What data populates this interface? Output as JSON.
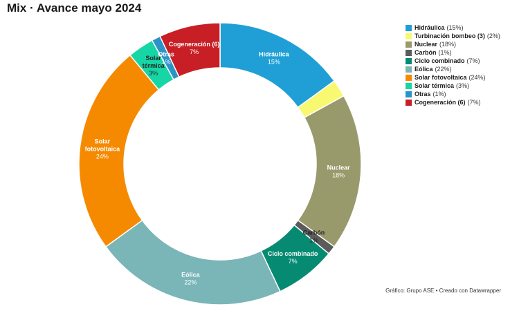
{
  "title": "Mix · Avance mayo 2024",
  "source": "Gráfico: Grupo ASE • Creado con Datawrapper",
  "chart_data": {
    "type": "pie",
    "donut": true,
    "title": "Mix · Avance mayo 2024",
    "legend_position": "top-right",
    "slices": [
      {
        "name": "Hidráulica",
        "value": 15,
        "pct_label": "(15%)",
        "slice_label": "15%",
        "color": "#1f9fd6",
        "label_on_chart": true
      },
      {
        "name": "Turbinación bombeo",
        "name_suffix": " (3)",
        "value": 2,
        "pct_label": "(2%)",
        "slice_label": "",
        "color": "#f9f871",
        "label_on_chart": false
      },
      {
        "name": "Nuclear",
        "value": 18,
        "pct_label": "(18%)",
        "slice_label": "18%",
        "color": "#999a6c",
        "label_on_chart": true
      },
      {
        "name": "Carbón",
        "value": 1,
        "pct_label": "(1%)",
        "slice_label": "1%",
        "color": "#5b5b5b",
        "label_on_chart": true,
        "dark_label": true
      },
      {
        "name": "Ciclo combinado",
        "value": 7,
        "pct_label": "(7%)",
        "slice_label": "7%",
        "color": "#078a72",
        "label_on_chart": true
      },
      {
        "name": "Eólica",
        "value": 22,
        "pct_label": "(22%)",
        "slice_label": "22%",
        "color": "#7ab5b8",
        "label_on_chart": true
      },
      {
        "name": "Solar fotovoltaica",
        "name_lines": [
          "Solar",
          "fotovoltaica"
        ],
        "value": 24,
        "pct_label": "(24%)",
        "slice_label": "24%",
        "color": "#f58a00",
        "label_on_chart": true
      },
      {
        "name": "Solar térmica",
        "name_lines": [
          "Solar",
          "térmica"
        ],
        "value": 3,
        "pct_label": "(3%)",
        "slice_label": "3%",
        "color": "#17d6a6",
        "label_on_chart": true,
        "dark_label": true
      },
      {
        "name": "Otras",
        "value": 1,
        "pct_label": "(1%)",
        "slice_label": "1%",
        "color": "#2b93c8",
        "label_on_chart": true
      },
      {
        "name": "Cogeneración",
        "name_suffix": " (6)",
        "value": 7,
        "pct_label": "(7%)",
        "slice_label": "7%",
        "color": "#c71f25",
        "label_on_chart": true
      }
    ]
  }
}
